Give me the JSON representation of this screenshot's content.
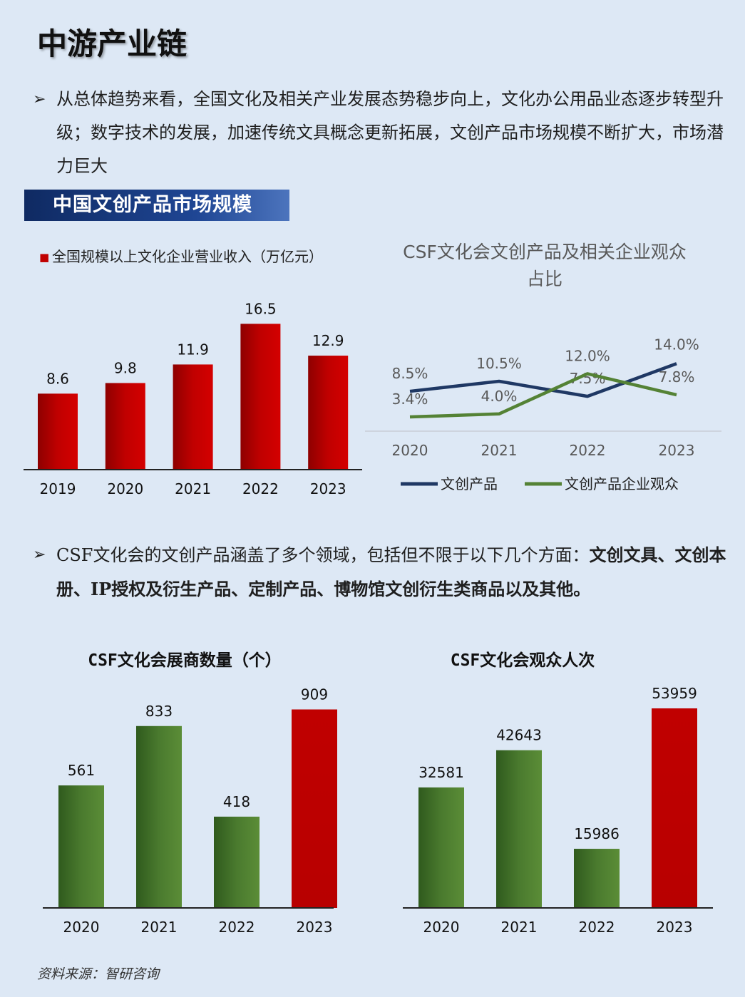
{
  "page": {
    "title": "中游产业链",
    "bullet1": {
      "arrow": "➢",
      "text": "从总体趋势来看，全国文化及相关产业发展态势稳步向上，文化办公用品业态逐步转型升级；数字技术的发展，加速传统文具概念更新拓展，文创产品市场规模不断扩大，市场潜力巨大"
    },
    "section_banner": "中国文创产品市场规模",
    "bullet2": {
      "arrow": "➢",
      "intro": "CSF文化会的文创产品涵盖了多个领域，包括但不限于以下几个方面：",
      "items": "文创文具、文创本册、IP授权及衍生产品、定制产品、博物馆文创衍生类商品以及其他。"
    },
    "source": "资料来源：智研咨询"
  },
  "colors": {
    "red": "#c00000",
    "green": "#4f812f",
    "navy": "#1f3864",
    "line_green": "#548235",
    "banner": "#1f4694"
  },
  "chart_data": [
    {
      "id": "revenue",
      "type": "bar",
      "title": "",
      "legend_marker": "■",
      "legend": "全国规模以上文化企业营业收入（万亿元）",
      "categories": [
        "2019",
        "2020",
        "2021",
        "2022",
        "2023"
      ],
      "values": [
        8.6,
        9.8,
        11.9,
        16.5,
        12.9
      ],
      "labels": [
        "8.6",
        "9.8",
        "11.9",
        "16.5",
        "12.9"
      ],
      "bar_colors": [
        "red",
        "red",
        "red",
        "red",
        "red"
      ],
      "ylim": [
        0,
        17.5
      ]
    },
    {
      "id": "share",
      "type": "line",
      "title_line1": "CSF文化会文创产品及相关企业观众",
      "title_line2": "占比",
      "categories": [
        "2020",
        "2021",
        "2022",
        "2023"
      ],
      "series": [
        {
          "name": "文创产品",
          "values": [
            8.5,
            10.5,
            7.5,
            14.0
          ],
          "labels": [
            "8.5%",
            "10.5%",
            "7.5%",
            "14.0%"
          ],
          "color": "navy"
        },
        {
          "name": "文创产品企业观众",
          "values": [
            3.4,
            4.0,
            12.0,
            7.8
          ],
          "labels": [
            "3.4%",
            "4.0%",
            "12.0%",
            "7.8%"
          ],
          "color": "line_green"
        }
      ],
      "ylim": [
        0,
        17
      ],
      "legend_position": "bottom"
    },
    {
      "id": "exhibitors",
      "type": "bar",
      "title": "CSF文化会展商数量（个）",
      "categories": [
        "2020",
        "2021",
        "2022",
        "2023"
      ],
      "values": [
        561,
        833,
        418,
        909
      ],
      "labels": [
        "561",
        "833",
        "418",
        "909"
      ],
      "bar_colors": [
        "green",
        "green",
        "green",
        "red"
      ],
      "ylim": [
        0,
        940
      ]
    },
    {
      "id": "visitors",
      "type": "bar",
      "title": "CSF文化会观众人次",
      "categories": [
        "2020",
        "2021",
        "2022",
        "2023"
      ],
      "values": [
        32581,
        42643,
        15986,
        53959
      ],
      "labels": [
        "32581",
        "42643",
        "15986",
        "53959"
      ],
      "bar_colors": [
        "green",
        "green",
        "green",
        "red"
      ],
      "ylim": [
        0,
        55500
      ]
    }
  ]
}
